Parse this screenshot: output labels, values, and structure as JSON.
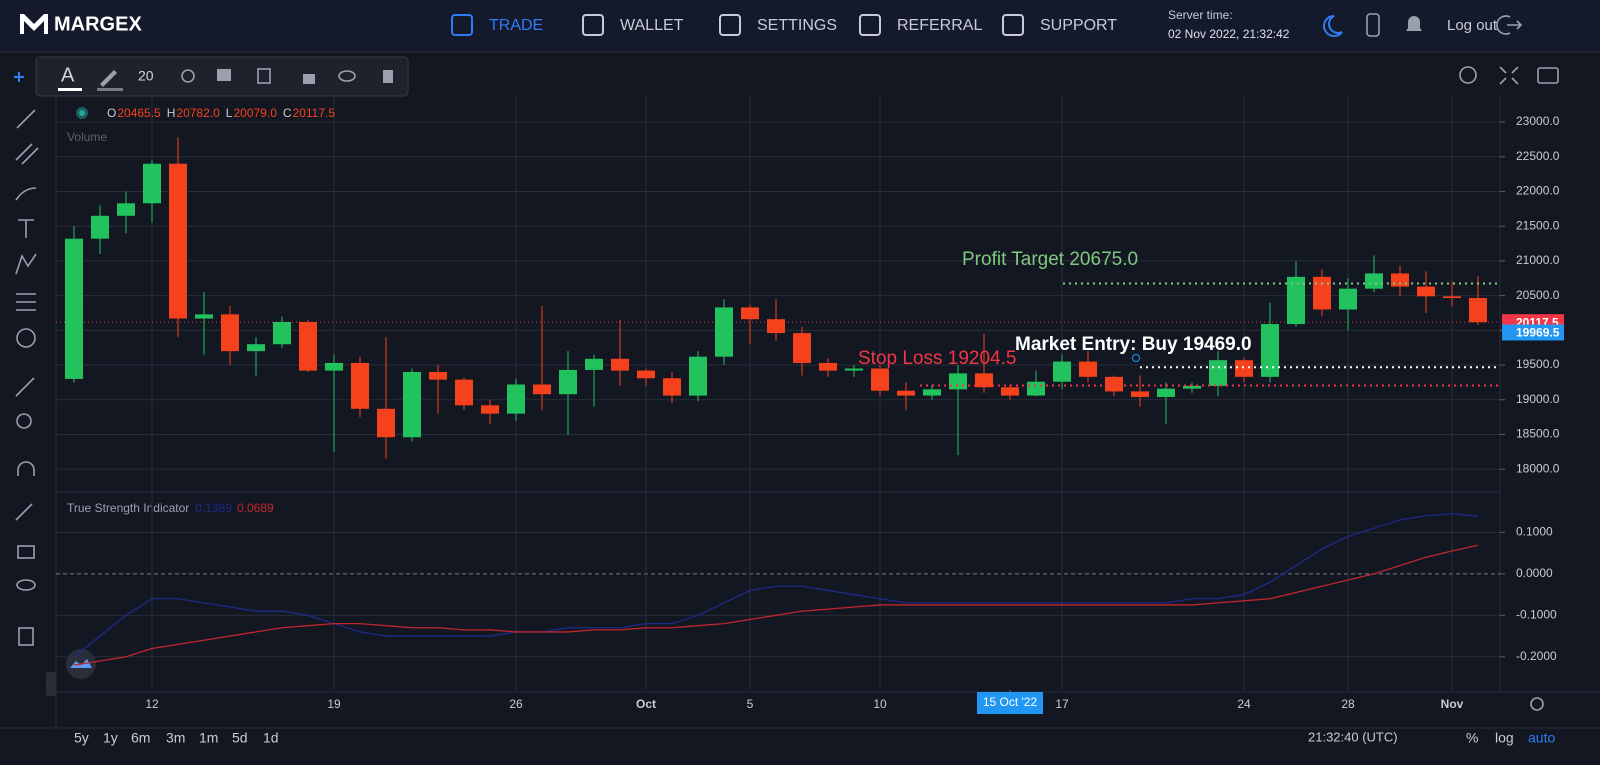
{
  "header": {
    "logo": "MARGEX",
    "nav": [
      "TRADE",
      "WALLET",
      "SETTINGS",
      "REFERRAL",
      "SUPPORT"
    ],
    "active_color": "#2f7cf6",
    "server_time_label": "Server time:",
    "server_time": "02 Nov 2022, 21:32:42",
    "logout": "Log out"
  },
  "toolbar": {
    "font_size": "20"
  },
  "timeframes": [
    "5y",
    "1y",
    "6m",
    "3m",
    "1m",
    "5d",
    "1d"
  ],
  "footer": {
    "clock": "21:32:40 (UTC)",
    "options": [
      "%",
      "log",
      "auto"
    ]
  },
  "chart_data": {
    "type": "candlestick",
    "categories": [
      null,
      null,
      null,
      "12",
      null,
      null,
      null,
      null,
      null,
      null,
      "19",
      null,
      null,
      null,
      null,
      null,
      null,
      "26",
      null,
      null,
      null,
      null,
      "Oct",
      null,
      null,
      null,
      "5",
      null,
      null,
      null,
      null,
      "10",
      null,
      null,
      null,
      null,
      null,
      null,
      "17",
      null,
      null,
      null,
      null,
      null,
      null,
      "24",
      null,
      null,
      null,
      "28",
      null,
      null,
      null,
      "Nov",
      null
    ],
    "open": [
      19300,
      21320,
      21650,
      21830,
      22400,
      20170,
      20230,
      19700,
      19800,
      20120,
      19420,
      19530,
      18870,
      18460,
      19400,
      19290,
      18920,
      18800,
      19220,
      19080,
      19430,
      19590,
      19420,
      19310,
      19060,
      19620,
      20330,
      20160,
      19960,
      19530,
      19420,
      19450,
      19130,
      19060,
      19150,
      19380,
      19180,
      19060,
      19260,
      19550,
      19330,
      19120,
      19040,
      19160,
      19200,
      19570,
      19330,
      20090,
      20770,
      20300,
      20600,
      20820,
      20630,
      20490,
      20465.5
    ],
    "high": [
      21500,
      21800,
      22000,
      22450,
      22780,
      20550,
      20350,
      19900,
      20200,
      20150,
      19650,
      19620,
      19900,
      19450,
      19500,
      19320,
      19000,
      19300,
      20350,
      19700,
      19650,
      20150,
      19450,
      19400,
      19700,
      20450,
      20370,
      20450,
      20050,
      19600,
      19500,
      19500,
      19250,
      19220,
      19500,
      19950,
      19220,
      19420,
      19650,
      19700,
      19350,
      19350,
      19250,
      19250,
      19700,
      19600,
      20400,
      21000,
      20880,
      20750,
      21080,
      20930,
      20850,
      20700,
      20782
    ],
    "low": [
      19250,
      21100,
      21400,
      21550,
      19900,
      19650,
      19500,
      19350,
      19750,
      19400,
      18250,
      18750,
      18150,
      18400,
      18800,
      18850,
      18650,
      18700,
      18850,
      18500,
      18900,
      19200,
      19200,
      18950,
      18980,
      19500,
      19800,
      19850,
      19350,
      19330,
      19330,
      19050,
      18850,
      19000,
      18200,
      19100,
      19000,
      19050,
      19150,
      19250,
      19050,
      18900,
      18650,
      19100,
      19050,
      19250,
      19250,
      20050,
      20200,
      20000,
      20550,
      20500,
      20250,
      20350,
      20079
    ],
    "close": [
      21320,
      21650,
      21830,
      22400,
      20170,
      20230,
      19700,
      19800,
      20120,
      19420,
      19530,
      18870,
      18460,
      19400,
      19290,
      18920,
      18800,
      19220,
      19080,
      19430,
      19590,
      19420,
      19310,
      19060,
      19620,
      20330,
      20160,
      19960,
      19530,
      19420,
      19450,
      19130,
      19060,
      19150,
      19380,
      19180,
      19060,
      19260,
      19550,
      19330,
      19120,
      19040,
      19160,
      19200,
      19570,
      19330,
      20090,
      20770,
      20300,
      20600,
      20820,
      20630,
      20490,
      20465.5,
      20117.5
    ],
    "up_color": "#22c35e",
    "down_color": "#f5411c",
    "ylim": [
      17700,
      23390
    ],
    "yticks": [
      {
        "value": 18000,
        "label": "18000.0"
      },
      {
        "value": 18500,
        "label": "18500.0"
      },
      {
        "value": 19000,
        "label": "19000.0"
      },
      {
        "value": 19500,
        "label": "19500.0"
      },
      {
        "value": 20000,
        "label": "20000.0"
      },
      {
        "value": 20500,
        "label": "20500.0"
      },
      {
        "value": 21000,
        "label": "21000.0"
      },
      {
        "value": 21500,
        "label": "21500.0"
      },
      {
        "value": 22000,
        "label": "22000.0"
      },
      {
        "value": 22500,
        "label": "22500.0"
      },
      {
        "value": 23000,
        "label": "23000.0"
      }
    ],
    "grid": true,
    "legend_ohlc": [
      {
        "key": "O",
        "text": "20465.5"
      },
      {
        "key": "H",
        "text": "20782.0"
      },
      {
        "key": "L",
        "text": "20079.0"
      },
      {
        "key": "C",
        "text": "20117.5"
      }
    ],
    "volume_label": "Volume",
    "levels": [
      {
        "label": "Profit Target 20675.0",
        "value": 20675,
        "color": "#7fc97f"
      },
      {
        "label": "Market Entry: Buy 19469.0",
        "value": 19469,
        "color": "#ffffff"
      },
      {
        "label": "Stop Loss 19204.5",
        "value": 19204.5,
        "color": "#f23645"
      }
    ],
    "price_labels": [
      {
        "value": 20117.5,
        "label": "20117.5",
        "color": "#f23645"
      },
      {
        "value": 19969.5,
        "label": "19969.5",
        "color": "#2196f3"
      }
    ],
    "crosshair": {
      "label": "15 Oct '22"
    },
    "indicator": {
      "title": "True Strength Indicator",
      "y2lim": [
        -0.28,
        0.19
      ],
      "y2ticks": [
        {
          "value": -0.2,
          "label": "-0.2000"
        },
        {
          "value": -0.1,
          "label": "-0.1000"
        },
        {
          "value": 0,
          "label": "0.0000"
        },
        {
          "value": 0.1,
          "label": "0.1000"
        }
      ],
      "series": [
        {
          "color": "#1c2a8a",
          "last_label": "0.1389",
          "values": [
            -0.2,
            -0.15,
            -0.1,
            -0.06,
            -0.06,
            -0.07,
            -0.08,
            -0.09,
            -0.09,
            -0.1,
            -0.12,
            -0.14,
            -0.15,
            -0.15,
            -0.15,
            -0.15,
            -0.15,
            -0.14,
            -0.14,
            -0.13,
            -0.13,
            -0.13,
            -0.12,
            -0.12,
            -0.1,
            -0.07,
            -0.04,
            -0.03,
            -0.03,
            -0.04,
            -0.05,
            -0.06,
            -0.07,
            -0.07,
            -0.07,
            -0.07,
            -0.07,
            -0.07,
            -0.07,
            -0.07,
            -0.07,
            -0.07,
            -0.07,
            -0.06,
            -0.06,
            -0.05,
            -0.02,
            0.02,
            0.06,
            0.09,
            0.11,
            0.13,
            0.14,
            0.145,
            0.1389
          ]
        },
        {
          "color": "#c0262d",
          "last_label": "0.0689",
          "values": [
            -0.22,
            -0.21,
            -0.2,
            -0.18,
            -0.17,
            -0.16,
            -0.15,
            -0.14,
            -0.13,
            -0.125,
            -0.12,
            -0.12,
            -0.125,
            -0.13,
            -0.13,
            -0.135,
            -0.135,
            -0.14,
            -0.14,
            -0.14,
            -0.135,
            -0.135,
            -0.13,
            -0.13,
            -0.125,
            -0.12,
            -0.11,
            -0.1,
            -0.09,
            -0.085,
            -0.08,
            -0.075,
            -0.075,
            -0.075,
            -0.075,
            -0.075,
            -0.075,
            -0.075,
            -0.075,
            -0.075,
            -0.075,
            -0.075,
            -0.075,
            -0.075,
            -0.07,
            -0.065,
            -0.06,
            -0.045,
            -0.03,
            -0.015,
            0.0,
            0.02,
            0.04,
            0.055,
            0.0689
          ]
        }
      ]
    }
  }
}
